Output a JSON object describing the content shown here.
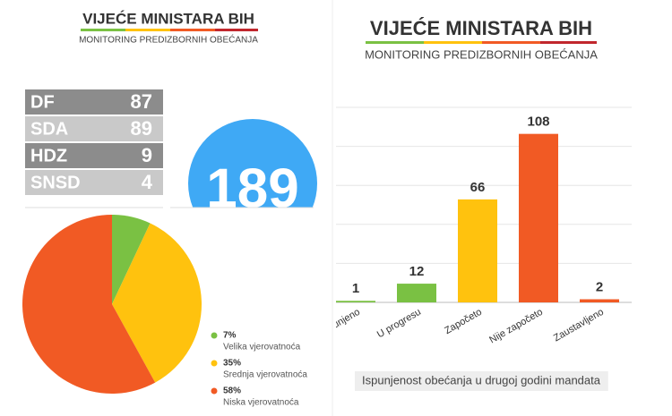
{
  "left_header": {
    "title": "VIJEĆE MINISTARA BIH",
    "subtitle": "MONITORING PREDIZBORNIH OBEĆANJA"
  },
  "right_header": {
    "title": "VIJEĆE MINISTARA BIH",
    "subtitle": "MONITORING PREDIZBORNIH OBEĆANJA"
  },
  "table": {
    "rows": [
      [
        "DF",
        87
      ],
      [
        "SDA",
        89
      ],
      [
        "HDZ",
        9
      ],
      [
        "SNSD",
        4
      ]
    ]
  },
  "total": 189,
  "chart_data": [
    {
      "type": "pie",
      "categories": [
        "Velika vjerovatnoća",
        "Srednja vjerovatnoća",
        "Niska vjerovatnoća"
      ],
      "values": [
        7,
        35,
        58
      ],
      "value_labels": [
        "7%",
        "35%",
        "58%"
      ],
      "colors": [
        "#7ac143",
        "#ffc20e",
        "#f15a24"
      ]
    },
    {
      "type": "bar",
      "categories": [
        "Ispunjeno",
        "U progresu",
        "Započeto",
        "Nije započeto",
        "Zaustavljeno"
      ],
      "values": [
        1,
        12,
        66,
        108,
        2
      ],
      "colors": [
        "#7ac143",
        "#7ac143",
        "#ffc20e",
        "#f15a24",
        "#f15a24"
      ],
      "ylim": [
        0,
        125
      ],
      "yticks": [
        0,
        25,
        50,
        75,
        100,
        125
      ],
      "grid": true,
      "caption": "Ispunjenost obećanja u drugoj godini mandata"
    }
  ]
}
